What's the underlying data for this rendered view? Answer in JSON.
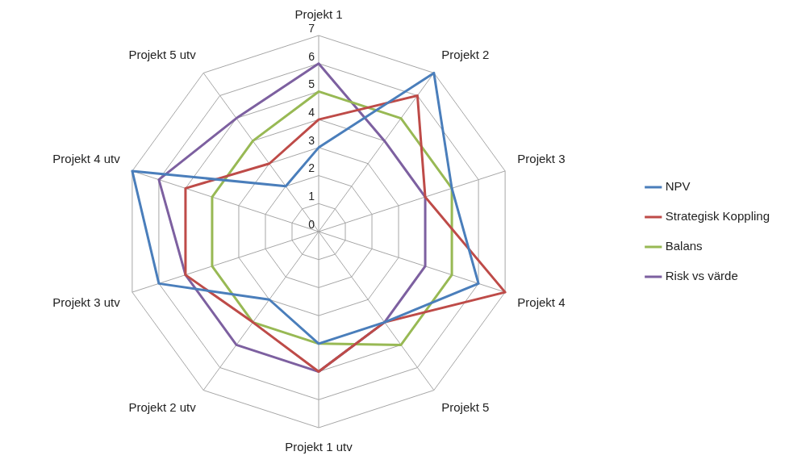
{
  "chart_data": {
    "type": "radar",
    "categories": [
      "Projekt 1",
      "Projekt 2",
      "Projekt 3",
      "Projekt 4",
      "Projekt 5",
      "Projekt 1 utv",
      "Projekt 2 utv",
      "Projekt 3 utv",
      "Projekt 4 utv",
      "Projekt 5 utv"
    ],
    "series": [
      {
        "name": "NPV",
        "color": "#4a7ebb",
        "values": [
          3,
          7,
          5,
          6,
          4,
          4,
          3,
          6,
          7,
          2
        ]
      },
      {
        "name": "Strategisk Koppling",
        "color": "#be4b48",
        "values": [
          4,
          6,
          4,
          7,
          4,
          5,
          4,
          5,
          5,
          3
        ]
      },
      {
        "name": "Balans",
        "color": "#98b954",
        "values": [
          5,
          5,
          5,
          5,
          5,
          4,
          4,
          4,
          4,
          4
        ]
      },
      {
        "name": "Risk vs värde",
        "color": "#7d60a0",
        "values": [
          6,
          4,
          4,
          4,
          4,
          5,
          5,
          5,
          6,
          5
        ]
      }
    ],
    "ylim": [
      0,
      7
    ],
    "yticks": [
      0,
      1,
      2,
      3,
      4,
      5,
      6,
      7
    ],
    "grid": true,
    "legend": "right",
    "marker": "none",
    "line_style": "solid"
  }
}
